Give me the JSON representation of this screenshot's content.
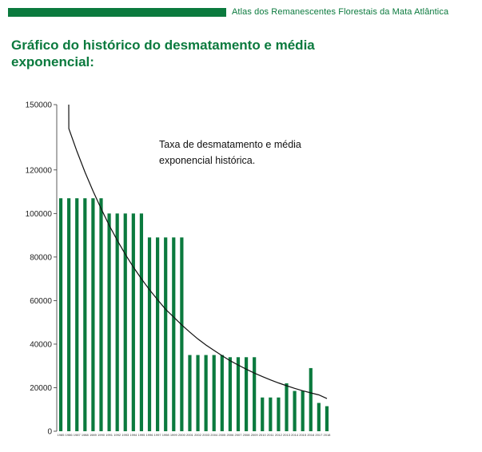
{
  "header": {
    "title": "Atlas dos Remanescentes Florestais da Mata Atlântica",
    "bar_color": "#0b7a3e"
  },
  "chart_data": {
    "type": "bar",
    "title": "Gráfico do histórico do desmatamento e média exponencial:",
    "xlabel": "",
    "ylabel": "",
    "ylim": [
      0,
      150000
    ],
    "yticks": [
      0,
      20000,
      40000,
      60000,
      80000,
      100000,
      120000,
      150000
    ],
    "grid": false,
    "categories": [
      "1985",
      "1986",
      "1987",
      "1988",
      "1989",
      "1990",
      "1991",
      "1992",
      "1993",
      "1994",
      "1995",
      "1996",
      "1997",
      "1998",
      "1999",
      "2000",
      "2001",
      "2002",
      "2003",
      "2004",
      "2005",
      "2006",
      "2007",
      "2008",
      "2009",
      "2010",
      "2011",
      "2012",
      "2013",
      "2014",
      "2015",
      "2016",
      "2017",
      "2018"
    ],
    "series": [
      {
        "color": "#0b7a3e",
        "values": [
          107000,
          107000,
          107000,
          107000,
          107000,
          107000,
          100000,
          100000,
          100000,
          100000,
          100000,
          89000,
          89000,
          89000,
          89000,
          89000,
          35000,
          35000,
          35000,
          35000,
          35000,
          34000,
          34000,
          34000,
          34000,
          15500,
          15500,
          15500,
          22000,
          18500,
          18500,
          29000,
          13000,
          11500
        ]
      },
      {
        "type": "line",
        "color": "#111111",
        "x": [
          1985,
          1986,
          1987,
          1988,
          1989,
          1990,
          1991,
          1992,
          1993,
          1994,
          1995,
          1996,
          1997,
          1998,
          1999,
          2000,
          2001,
          2002,
          2003,
          2004,
          2005,
          2006,
          2007,
          2008,
          2009,
          2010,
          2011,
          2012,
          2013,
          2014,
          2015,
          2016,
          2017,
          2018
        ],
        "values": [
          150000,
          139000,
          128600,
          119000,
          110300,
          102200,
          94600,
          87700,
          81300,
          75400,
          70000,
          65000,
          60400,
          56000,
          52400,
          48800,
          45500,
          42400,
          39600,
          37100,
          34700,
          32400,
          30400,
          28500,
          26700,
          25100,
          23600,
          22200,
          20900,
          19700,
          18600,
          17600,
          16700,
          15000
        ]
      }
    ],
    "annotation": {
      "line1": "Taxa de desmatamento e média",
      "line2": "exponencial histórica."
    }
  }
}
